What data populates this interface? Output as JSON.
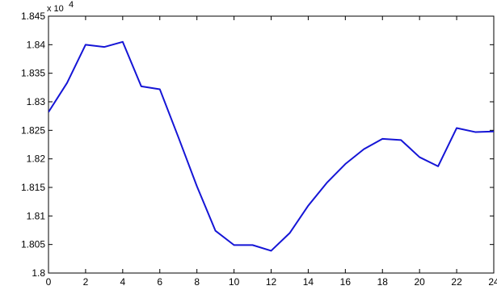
{
  "chart_data": {
    "type": "line",
    "title": "",
    "xlabel": "",
    "ylabel": "",
    "y_multiplier_label": "x 10",
    "y_multiplier_exponent": "4",
    "xlim": [
      0,
      24
    ],
    "ylim": [
      1.8,
      1.845
    ],
    "x_ticks": [
      0,
      2,
      4,
      6,
      8,
      10,
      12,
      14,
      16,
      18,
      20,
      22,
      24
    ],
    "y_ticks": [
      1.8,
      1.805,
      1.81,
      1.815,
      1.82,
      1.825,
      1.83,
      1.835,
      1.84,
      1.845
    ],
    "x_tick_labels": [
      "0",
      "2",
      "4",
      "6",
      "8",
      "10",
      "12",
      "14",
      "16",
      "18",
      "20",
      "22",
      "24"
    ],
    "y_tick_labels": [
      "1.8",
      "1.805",
      "1.81",
      "1.815",
      "1.82",
      "1.825",
      "1.83",
      "1.835",
      "1.84",
      "1.845"
    ],
    "grid": false,
    "series": [
      {
        "color": "#1515d6",
        "x": [
          0,
          1,
          2,
          3,
          4,
          5,
          6,
          7,
          8,
          9,
          10,
          11,
          12,
          13,
          14,
          15,
          16,
          17,
          18,
          19,
          20,
          21,
          22,
          23,
          24
        ],
        "y": [
          1.8282,
          1.8333,
          1.84,
          1.8396,
          1.8405,
          1.8327,
          1.8322,
          1.8238,
          1.8152,
          1.8074,
          1.8049,
          1.8049,
          1.8039,
          1.807,
          1.8118,
          1.8158,
          1.8191,
          1.8217,
          1.8235,
          1.8233,
          1.8203,
          1.8187,
          1.8254,
          1.8247,
          1.8248
        ]
      }
    ]
  }
}
